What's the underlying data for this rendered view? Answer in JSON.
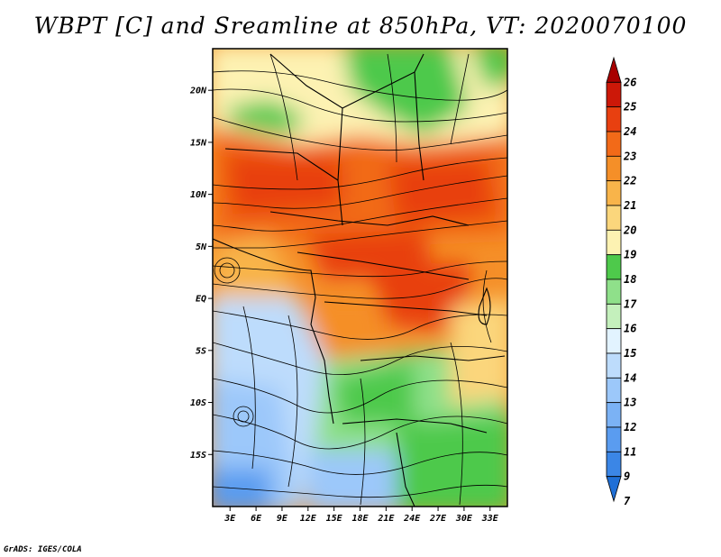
{
  "title": "WBPT [C] and Sreamline at 850hPa, VT: 2020070100",
  "credit": "GrADS: IGES/COLA",
  "map": {
    "lat_range": [
      -20,
      24
    ],
    "lon_range": [
      1,
      35
    ],
    "lat_ticks": [
      {
        "value": 20,
        "label": "20N"
      },
      {
        "value": 15,
        "label": "15N"
      },
      {
        "value": 10,
        "label": "10N"
      },
      {
        "value": 5,
        "label": "5N"
      },
      {
        "value": 0,
        "label": "EQ"
      },
      {
        "value": -5,
        "label": "5S"
      },
      {
        "value": -10,
        "label": "10S"
      },
      {
        "value": -15,
        "label": "15S"
      }
    ],
    "lon_ticks": [
      {
        "value": 3,
        "label": "3E"
      },
      {
        "value": 6,
        "label": "6E"
      },
      {
        "value": 9,
        "label": "9E"
      },
      {
        "value": 12,
        "label": "12E"
      },
      {
        "value": 15,
        "label": "15E"
      },
      {
        "value": 18,
        "label": "18E"
      },
      {
        "value": 21,
        "label": "21E"
      },
      {
        "value": 24,
        "label": "24E"
      },
      {
        "value": 27,
        "label": "27E"
      },
      {
        "value": 30,
        "label": "30E"
      },
      {
        "value": 33,
        "label": "33E"
      }
    ]
  },
  "colorbar": {
    "levels": [
      "7",
      "9",
      "11",
      "12",
      "13",
      "14",
      "15",
      "16",
      "17",
      "18",
      "19",
      "20",
      "21",
      "22",
      "23",
      "24",
      "25",
      "26"
    ],
    "colors": [
      "#1f6fd6",
      "#3b86e6",
      "#5a9cf0",
      "#7bb2f5",
      "#9cc8fa",
      "#bddcfc",
      "#e2f3ff",
      "#c4f0bc",
      "#8fe08a",
      "#4ec94b",
      "#fdf2b2",
      "#fbd67c",
      "#f8b44a",
      "#f58f28",
      "#f26a18",
      "#e84010",
      "#cc1808",
      "#a80000"
    ]
  }
}
